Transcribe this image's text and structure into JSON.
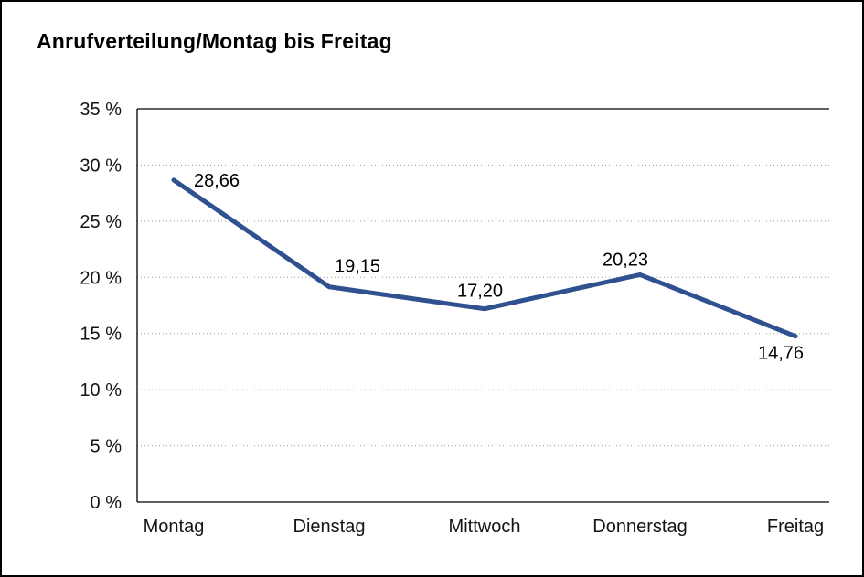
{
  "chart_data": {
    "type": "line",
    "title": "Anrufverteilung/Montag bis Freitag",
    "categories": [
      "Montag",
      "Dienstag",
      "Mittwoch",
      "Donnerstag",
      "Freitag"
    ],
    "values": [
      28.66,
      19.15,
      17.2,
      20.23,
      14.76
    ],
    "value_labels": [
      "28,66",
      "19,15",
      "17,20",
      "20,23",
      "14,76"
    ],
    "xlabel": "",
    "ylabel": "",
    "ylim": [
      0,
      35
    ],
    "ytick_step": 5,
    "ytick_labels": [
      "0 %",
      "5 %",
      "10 %",
      "15 %",
      "20 %",
      "25 %",
      "30 %",
      "35 %"
    ],
    "grid": "horizontal-dotted",
    "legend": "none",
    "line_color": "#30518F"
  }
}
